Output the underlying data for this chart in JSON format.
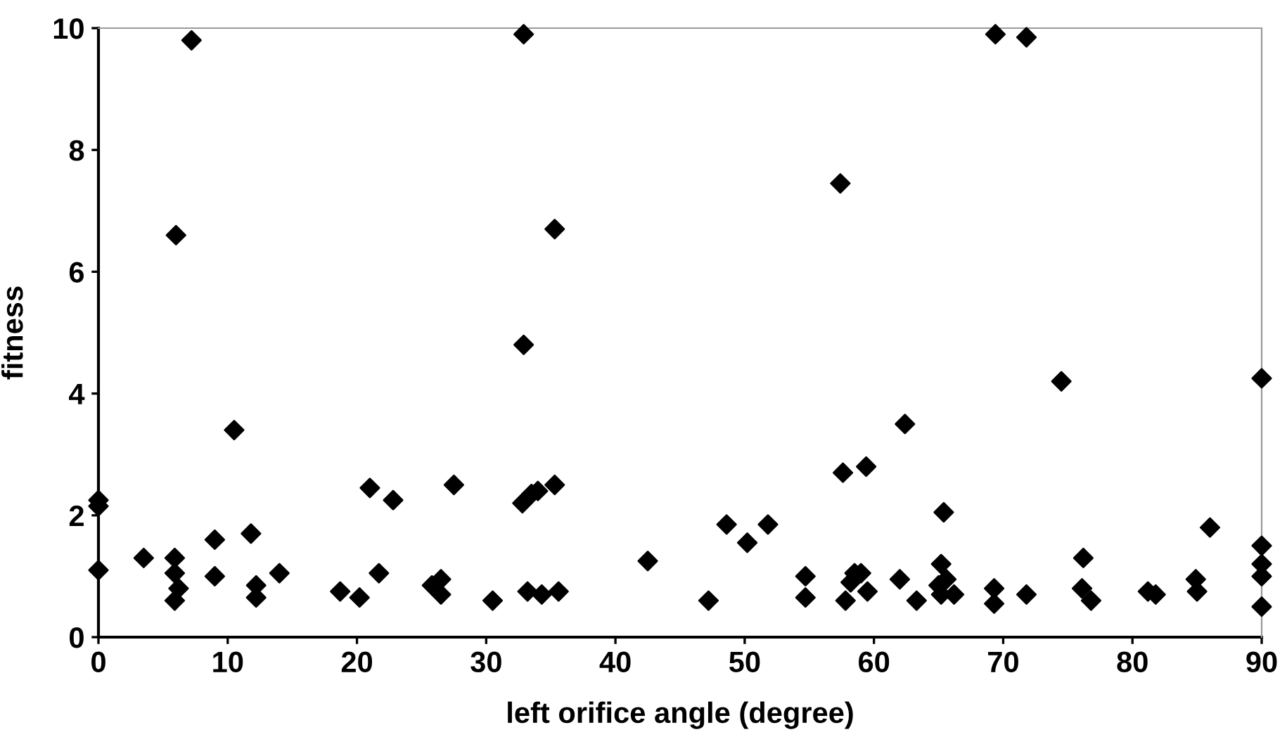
{
  "chart_data": {
    "type": "scatter",
    "xlabel": "left orifice angle (degree)",
    "ylabel": "fitness",
    "marker": "diamond",
    "grid": false,
    "legend": false,
    "xlim": [
      0,
      90
    ],
    "xticks": [
      0,
      10,
      20,
      30,
      40,
      50,
      60,
      70,
      80,
      90
    ],
    "ylim": [
      0,
      10
    ],
    "yticks": [
      0,
      2,
      4,
      6,
      8,
      10
    ],
    "series": [
      {
        "color": "#000000",
        "x": [
          0,
          0,
          0,
          3.5,
          5.9,
          5.9,
          6.2,
          5.9,
          6,
          7.2,
          9,
          9,
          10.5,
          11.8,
          12.2,
          12.2,
          14,
          18.7,
          20.2,
          21,
          21.7,
          22.8,
          25.8,
          26.5,
          26.5,
          27.5,
          30.5,
          32.9,
          32.9,
          32.8,
          33.2,
          33.5,
          34,
          34.3,
          35.3,
          35.3,
          35.6,
          42.5,
          47.2,
          48.6,
          50.2,
          51.8,
          54.7,
          54.7,
          57.4,
          57.6,
          57.8,
          58.2,
          58.5,
          59.4,
          59,
          59.5,
          62.4,
          62,
          63.3,
          65.4,
          65.2,
          65.2,
          65.6,
          66.2,
          65,
          69.4,
          69.3,
          69.3,
          71.8,
          71.8,
          74.5,
          76.2,
          76.1,
          76.8,
          81.2,
          81.8,
          84.9,
          85,
          86,
          90,
          90,
          90,
          90,
          90
        ],
        "values": [
          2.25,
          2.15,
          1.1,
          1.3,
          1.3,
          1.05,
          0.8,
          0.6,
          6.6,
          9.8,
          1.6,
          1.0,
          3.4,
          1.7,
          0.85,
          0.65,
          1.05,
          0.75,
          0.65,
          2.45,
          1.05,
          2.25,
          0.85,
          0.95,
          0.7,
          2.5,
          0.6,
          9.9,
          4.8,
          2.2,
          0.75,
          2.35,
          2.4,
          0.7,
          2.5,
          6.7,
          0.75,
          1.25,
          0.6,
          1.85,
          1.55,
          1.85,
          1.0,
          0.65,
          7.45,
          2.7,
          0.6,
          0.9,
          1.05,
          2.8,
          1.05,
          0.75,
          3.5,
          0.95,
          0.6,
          2.05,
          1.2,
          0.7,
          0.95,
          0.7,
          0.85,
          9.9,
          0.8,
          0.55,
          9.85,
          0.7,
          4.2,
          1.3,
          0.8,
          0.6,
          0.75,
          0.7,
          0.95,
          0.75,
          1.8,
          4.25,
          1.5,
          1.2,
          1.0,
          0.5
        ]
      }
    ]
  }
}
